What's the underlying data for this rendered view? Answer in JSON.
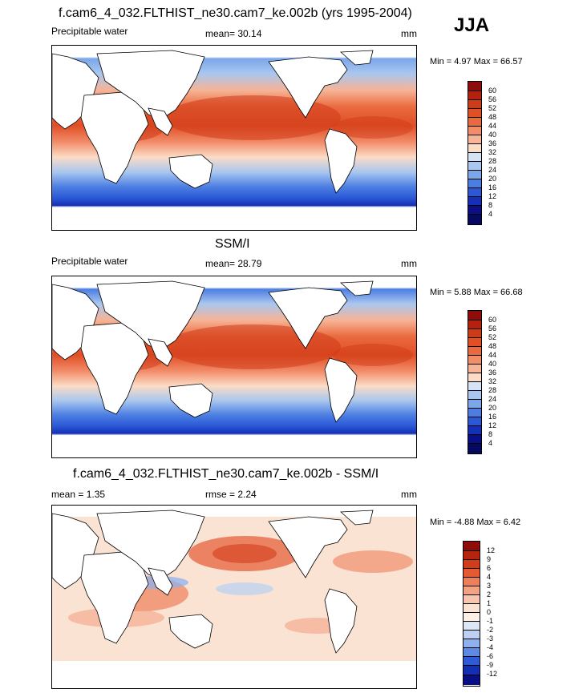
{
  "season": "JJA",
  "panels": [
    {
      "title": "f.cam6_4_032.FLTHIST_ne30.cam7_ke.002b (yrs 1995-2004)",
      "left_label": "Precipitable water",
      "mean_label": "mean=  30.14",
      "units": "mm",
      "minmax": "Min =   4.97 Max =  66.57",
      "levels": [
        "60",
        "56",
        "52",
        "48",
        "44",
        "40",
        "36",
        "32",
        "28",
        "24",
        "20",
        "16",
        "12",
        "8",
        "4"
      ]
    },
    {
      "title": "SSM/I",
      "left_label": "Precipitable water",
      "mean_label": "mean=  28.79",
      "units": "mm",
      "minmax": "Min =   5.88 Max =  66.68",
      "levels": [
        "60",
        "56",
        "52",
        "48",
        "44",
        "40",
        "36",
        "32",
        "28",
        "24",
        "20",
        "16",
        "12",
        "8",
        "4"
      ]
    },
    {
      "title": "f.cam6_4_032.FLTHIST_ne30.cam7_ke.002b - SSM/I",
      "left_label": "mean =   1.35",
      "mean_label": "rmse =   2.24",
      "units": "mm",
      "minmax": "Min =  -4.88 Max =   6.42",
      "levels": [
        "12",
        "9",
        "6",
        "4",
        "3",
        "2",
        "1",
        "0",
        "-1",
        "-2",
        "-3",
        "-4",
        "-6",
        "-9",
        "-12"
      ]
    }
  ],
  "colors": {
    "abs_scale": [
      "#8e0d0a",
      "#b2230f",
      "#cf3a17",
      "#e04f26",
      "#ea6a3f",
      "#f28d6a",
      "#f7b496",
      "#fbdcc6",
      "#d4e3f6",
      "#a9c7ef",
      "#7ca6ea",
      "#4c7ee2",
      "#2a58d6",
      "#1530b4",
      "#0a0f88",
      "#060a5c"
    ],
    "diff_scale": [
      "#8e0d0a",
      "#b5240f",
      "#d23c19",
      "#e45a33",
      "#ee7f5a",
      "#f4a284",
      "#f8c6ae",
      "#fbe3d4",
      "#fbefe6",
      "#dde8f7",
      "#bcd1f3",
      "#8fb2ed",
      "#5d8ae4",
      "#2f5bd6",
      "#1430b2",
      "#0a0e86"
    ]
  }
}
